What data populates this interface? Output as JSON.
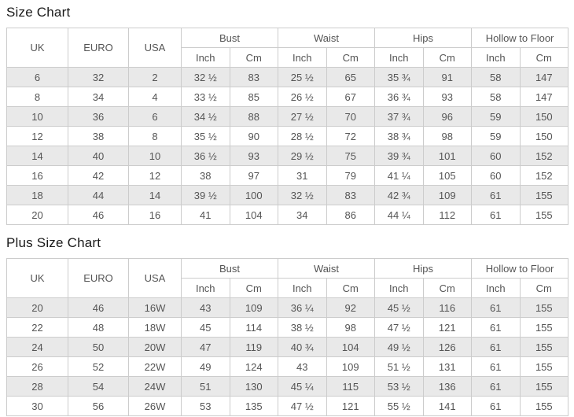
{
  "tables": [
    {
      "title": "Size Chart",
      "header": {
        "uk": "UK",
        "euro": "EURO",
        "usa": "USA",
        "groups": [
          {
            "label": "Bust",
            "sub": [
              "Inch",
              "Cm"
            ]
          },
          {
            "label": "Waist",
            "sub": [
              "Inch",
              "Cm"
            ]
          },
          {
            "label": "Hips",
            "sub": [
              "Inch",
              "Cm"
            ]
          },
          {
            "label": "Hollow to Floor",
            "sub": [
              "Inch",
              "Cm"
            ]
          }
        ]
      },
      "rows": [
        [
          "6",
          "32",
          "2",
          "32 ½",
          "83",
          "25 ½",
          "65",
          "35 ¾",
          "91",
          "58",
          "147"
        ],
        [
          "8",
          "34",
          "4",
          "33 ½",
          "85",
          "26 ½",
          "67",
          "36 ¾",
          "93",
          "58",
          "147"
        ],
        [
          "10",
          "36",
          "6",
          "34 ½",
          "88",
          "27 ½",
          "70",
          "37 ¾",
          "96",
          "59",
          "150"
        ],
        [
          "12",
          "38",
          "8",
          "35 ½",
          "90",
          "28 ½",
          "72",
          "38 ¾",
          "98",
          "59",
          "150"
        ],
        [
          "14",
          "40",
          "10",
          "36 ½",
          "93",
          "29 ½",
          "75",
          "39 ¾",
          "101",
          "60",
          "152"
        ],
        [
          "16",
          "42",
          "12",
          "38",
          "97",
          "31",
          "79",
          "41 ¼",
          "105",
          "60",
          "152"
        ],
        [
          "18",
          "44",
          "14",
          "39 ½",
          "100",
          "32 ½",
          "83",
          "42 ¾",
          "109",
          "61",
          "155"
        ],
        [
          "20",
          "46",
          "16",
          "41",
          "104",
          "34",
          "86",
          "44 ¼",
          "112",
          "61",
          "155"
        ]
      ]
    },
    {
      "title": "Plus Size Chart",
      "header": {
        "uk": "UK",
        "euro": "EURO",
        "usa": "USA",
        "groups": [
          {
            "label": "Bust",
            "sub": [
              "Inch",
              "Cm"
            ]
          },
          {
            "label": "Waist",
            "sub": [
              "Inch",
              "Cm"
            ]
          },
          {
            "label": "Hips",
            "sub": [
              "Inch",
              "Cm"
            ]
          },
          {
            "label": "Hollow to Floor",
            "sub": [
              "Inch",
              "Cm"
            ]
          }
        ]
      },
      "rows": [
        [
          "20",
          "46",
          "16W",
          "43",
          "109",
          "36 ¼",
          "92",
          "45 ½",
          "116",
          "61",
          "155"
        ],
        [
          "22",
          "48",
          "18W",
          "45",
          "114",
          "38 ½",
          "98",
          "47 ½",
          "121",
          "61",
          "155"
        ],
        [
          "24",
          "50",
          "20W",
          "47",
          "119",
          "40 ¾",
          "104",
          "49 ½",
          "126",
          "61",
          "155"
        ],
        [
          "26",
          "52",
          "22W",
          "49",
          "124",
          "43",
          "109",
          "51 ½",
          "131",
          "61",
          "155"
        ],
        [
          "28",
          "54",
          "24W",
          "51",
          "130",
          "45 ¼",
          "115",
          "53 ½",
          "136",
          "61",
          "155"
        ],
        [
          "30",
          "56",
          "26W",
          "53",
          "135",
          "47 ½",
          "121",
          "55 ½",
          "141",
          "61",
          "155"
        ]
      ]
    }
  ],
  "colors": {
    "stripe_row": "#e9e9e9",
    "border": "#cccccc",
    "cell_text": "#555555",
    "title_text": "#1a1a1a",
    "background": "#ffffff"
  }
}
